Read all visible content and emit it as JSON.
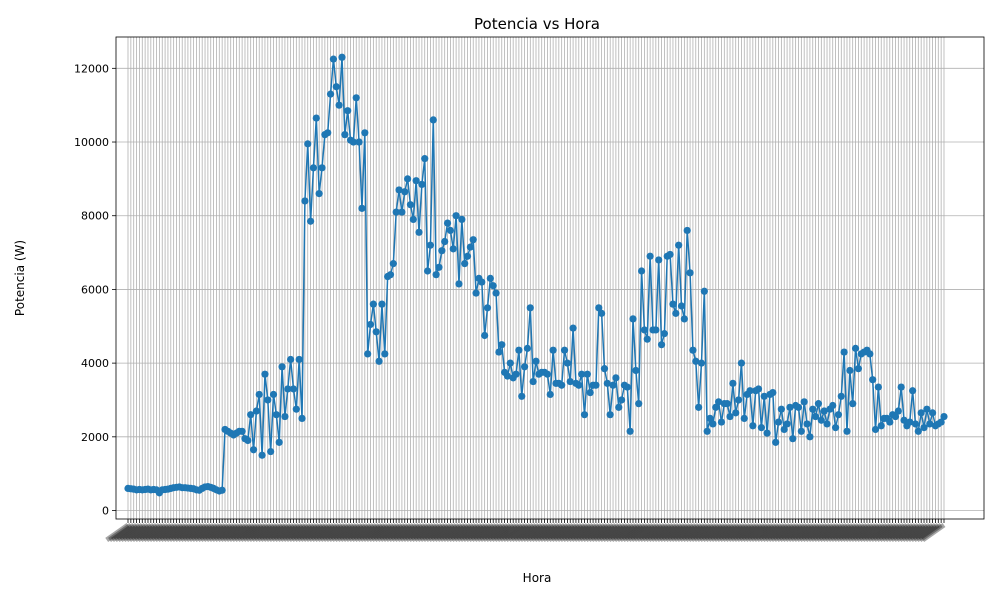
{
  "chart_data": {
    "type": "line",
    "title": "Potencia vs Hora",
    "xlabel": "Hora",
    "ylabel": "Potencia (W)",
    "ylim": [
      -230,
      12850
    ],
    "yticks": [
      0,
      2000,
      4000,
      6000,
      8000,
      10000,
      12000
    ],
    "ytick_labels": [
      "0",
      "2000",
      "4000",
      "6000",
      "8000",
      "10000",
      "12000"
    ],
    "grid": true,
    "legend": "none",
    "colors": {
      "series": "#1f77b4",
      "grid": "#b0b0b0"
    },
    "x_tick_labels_legible": false,
    "series": [
      {
        "values": [
          600,
          590,
          580,
          560,
          570,
          560,
          570,
          580,
          560,
          570,
          560,
          480,
          560,
          570,
          580,
          600,
          620,
          630,
          640,
          620,
          620,
          610,
          600,
          590,
          560,
          550,
          600,
          640,
          650,
          630,
          600,
          560,
          530,
          550,
          2200,
          2150,
          2100,
          2050,
          2100,
          2150,
          2150,
          1950,
          1900,
          2600,
          1650,
          2700,
          3150,
          1500,
          3700,
          3000,
          1600,
          3150,
          2600,
          1850,
          3900,
          2550,
          3300,
          4100,
          3300,
          2750,
          4100,
          2500,
          8400,
          9950,
          7850,
          9300,
          10650,
          8600,
          9300,
          10200,
          10250,
          11300,
          12250,
          11500,
          11000,
          12300,
          10200,
          10850,
          10050,
          10000,
          11200,
          10000,
          8200,
          10250,
          4250,
          5050,
          5600,
          4850,
          4050,
          5600,
          4250,
          6350,
          6400,
          6700,
          8100,
          8700,
          8100,
          8650,
          9000,
          8300,
          7900,
          8950,
          7550,
          8850,
          9550,
          6500,
          7200,
          10600,
          6400,
          6600,
          7050,
          7300,
          7800,
          7600,
          7100,
          8000,
          6150,
          7900,
          6700,
          6900,
          7150,
          7350,
          5900,
          6300,
          6200,
          4750,
          5500,
          6300,
          6100,
          5900,
          4300,
          4500,
          3750,
          3650,
          4000,
          3600,
          3700,
          4350,
          3100,
          3900,
          4400,
          5500,
          3500,
          4050,
          3700,
          3750,
          3750,
          3700,
          3150,
          4350,
          3450,
          3450,
          3400,
          4350,
          4000,
          3500,
          4950,
          3450,
          3400,
          3700,
          2600,
          3700,
          3200,
          3400,
          3400,
          5500,
          5350,
          3850,
          3450,
          2600,
          3400,
          3600,
          2800,
          3000,
          3400,
          3350,
          2150,
          5200,
          3800,
          2900,
          6500,
          4900,
          4650,
          6900,
          4900,
          4900,
          6800,
          4500,
          4800,
          6900,
          6950,
          5600,
          5350,
          7200,
          5550,
          5200,
          7600,
          6450,
          4350,
          4050,
          2800,
          4000,
          5950,
          2150,
          2500,
          2350,
          2800,
          2950,
          2400,
          2900,
          2900,
          2550,
          3450,
          2650,
          3000,
          4000,
          2500,
          3150,
          3250,
          2300,
          3250,
          3300,
          2250,
          3100,
          2100,
          3150,
          3200,
          1850,
          2400,
          2750,
          2200,
          2350,
          2800,
          1950,
          2850,
          2800,
          2150,
          2950,
          2350,
          2000,
          2750,
          2550,
          2900,
          2450,
          2700,
          2350,
          2750,
          2850,
          2250,
          2600,
          3100,
          4300,
          2150,
          3800,
          2900,
          4400,
          3850,
          4250,
          4300,
          4350,
          4250,
          3550,
          2200,
          3350,
          2300,
          2500,
          2500,
          2400,
          2600,
          2550,
          2700,
          3350,
          2450,
          2300,
          2400,
          3250,
          2350,
          2150,
          2650,
          2250,
          2750,
          2350,
          2650,
          2300,
          2350,
          2400,
          2550
        ]
      }
    ]
  }
}
